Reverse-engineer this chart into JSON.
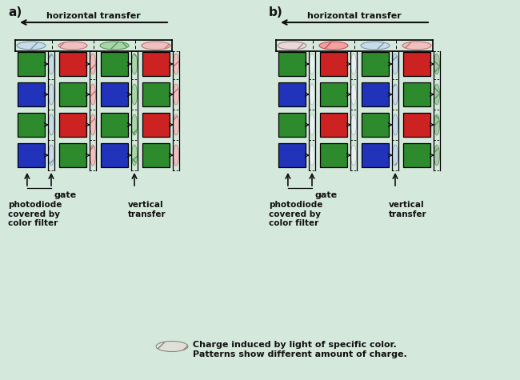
{
  "bg_color": "#d5e8dc",
  "green": "#2d8a2d",
  "red": "#cc2222",
  "blue": "#2233bb",
  "black": "#111111",
  "fig_w": 6.5,
  "fig_h": 4.75,
  "dpi": 100,
  "pixel_colors_a": [
    [
      "G",
      "R",
      "G",
      "R"
    ],
    [
      "B",
      "G",
      "B",
      "G"
    ],
    [
      "G",
      "R",
      "G",
      "R"
    ],
    [
      "B",
      "G",
      "B",
      "G"
    ]
  ],
  "pixel_colors_b": [
    [
      "G",
      "R",
      "G",
      "R"
    ],
    [
      "B",
      "G",
      "B",
      "G"
    ],
    [
      "G",
      "R",
      "G",
      "R"
    ],
    [
      "B",
      "G",
      "B",
      "G"
    ]
  ],
  "vert_reg_a": [
    {
      "fc": "#c8dce8",
      "hatch": "/",
      "ec": "#7799aa"
    },
    {
      "fc": "#f0c0c0",
      "hatch": "/",
      "ec": "#bb7777"
    },
    {
      "fc": "#aad4aa",
      "hatch": "x",
      "ec": "#559955"
    },
    {
      "fc": "#f0c0c0",
      "hatch": "/",
      "ec": "#bb7777"
    }
  ],
  "vert_reg_b": [
    {
      "fc": "#e8f0f0",
      "hatch": null,
      "ec": "#aabbbb"
    },
    {
      "fc": "#e8f0f0",
      "hatch": null,
      "ec": "#aabbbb"
    },
    {
      "fc": "#c8d8e8",
      "hatch": "/",
      "ec": "#7799aa"
    },
    {
      "fc": "#a8c8a8",
      "hatch": "x",
      "ec": "#559955"
    }
  ],
  "horiz_reg_a": [
    {
      "fc": "#c8dce8",
      "hatch": "/",
      "ec": "#7799aa"
    },
    {
      "fc": "#f0c0c0",
      "hatch": "/",
      "ec": "#bb7777"
    },
    {
      "fc": "#aad4aa",
      "hatch": "x",
      "ec": "#559955"
    },
    {
      "fc": "#f0c0c0",
      "hatch": "/",
      "ec": "#bb7777"
    }
  ],
  "horiz_reg_b": [
    {
      "fc": "#e8d8d8",
      "hatch": "/",
      "ec": "#aa8888"
    },
    {
      "fc": "#f4a0a0",
      "hatch": "/",
      "ec": "#bb5555"
    },
    {
      "fc": "#c8dce8",
      "hatch": "/",
      "ec": "#7799aa"
    },
    {
      "fc": "#f0c0c0",
      "hatch": "/",
      "ec": "#bb7777"
    }
  ],
  "legend_text1": "Charge induced by light of specific color.",
  "legend_text2": "Patterns show different amount of charge.",
  "gate_text": "gate",
  "photodiode_text": "photodiode\ncovered by\ncolor filter",
  "vertical_text": "vertical\ntransfer",
  "horiz_text": "horizontal transfer"
}
